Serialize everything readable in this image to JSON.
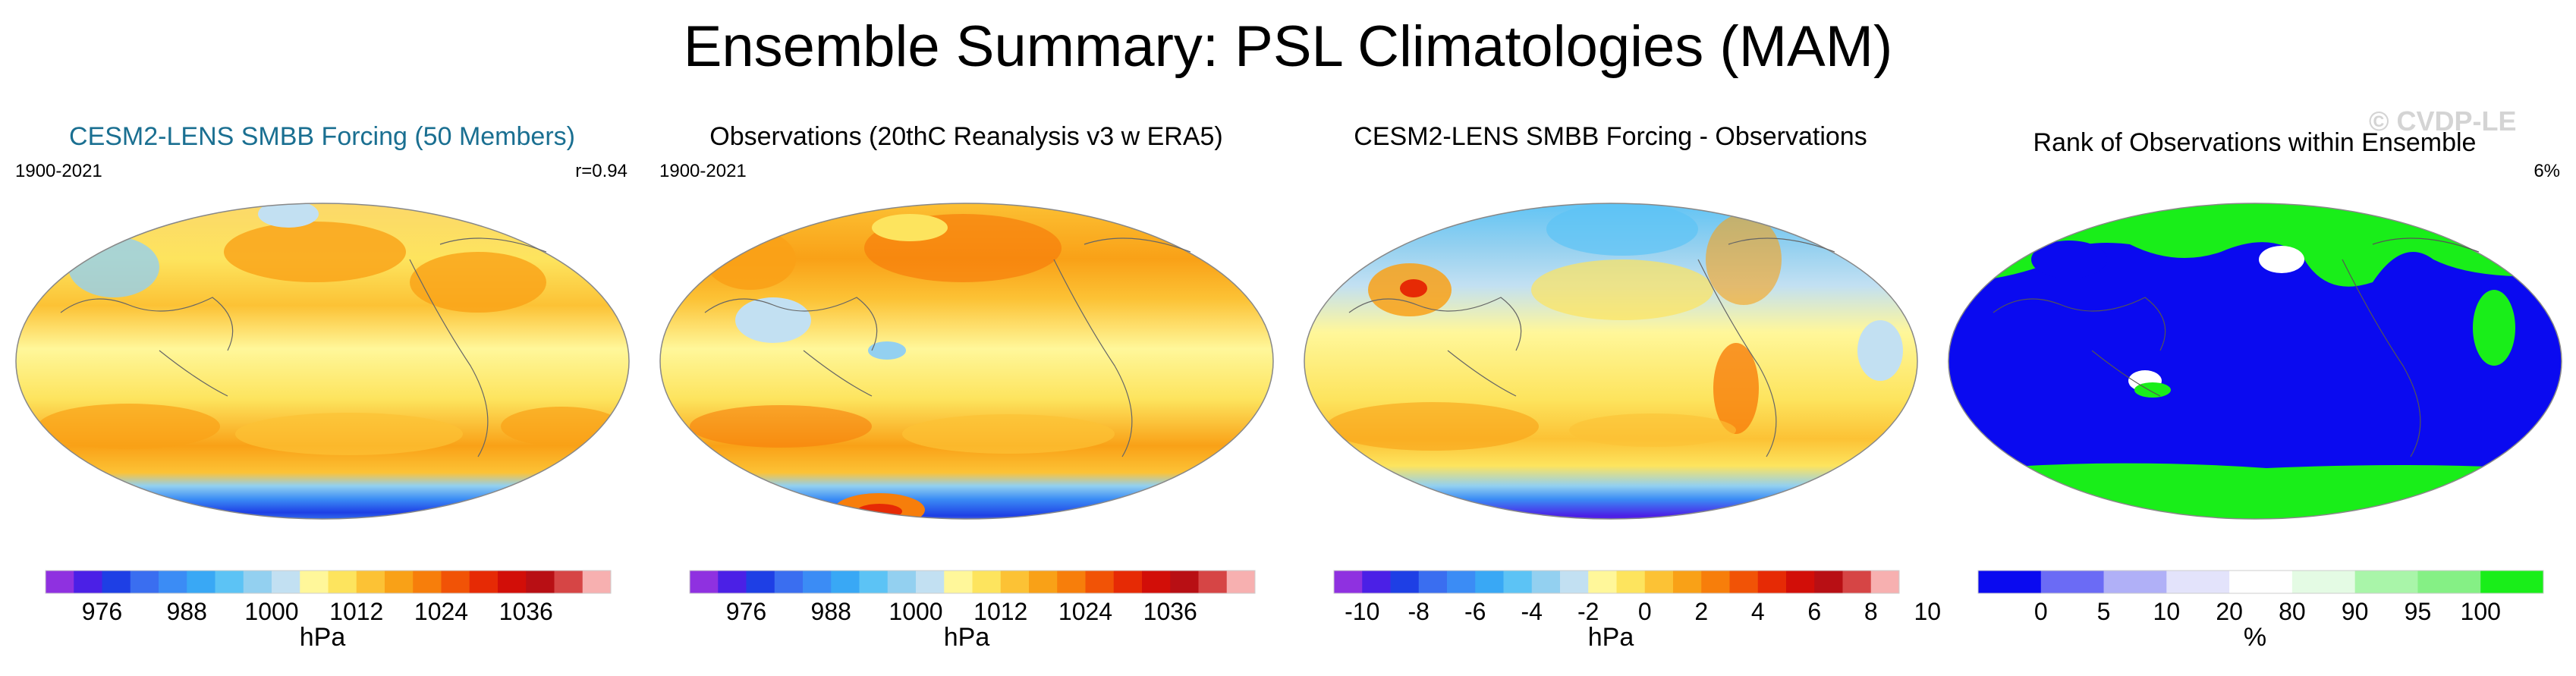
{
  "figure_title": "Ensemble Summary: PSL Climatologies (MAM)",
  "watermark": "© CVDP-LE",
  "chart_data": [
    {
      "type": "heatmap",
      "projection": "Robinson (Pacific-centred global map)",
      "title": "CESM2-LENS SMBB Forcing (50 Members)",
      "period": "1900-2021",
      "stat": "r=0.94",
      "colorbar": {
        "units": "hPa",
        "tick_labels": [
          "976",
          "988",
          "1000",
          "1012",
          "1024",
          "1036"
        ],
        "colors": [
          "#8f31e0",
          "#4b20e6",
          "#1e3fe5",
          "#3a6ef0",
          "#3b8cf5",
          "#39a8f5",
          "#5cc3f5",
          "#93d0f0",
          "#c2e0f2",
          "#fff79a",
          "#fde45e",
          "#fcc235",
          "#f9a117",
          "#f77e0b",
          "#f15306",
          "#e62a05",
          "#d20e08",
          "#b80f14",
          "#d64545",
          "#f7b0b0"
        ]
      }
    },
    {
      "type": "heatmap",
      "projection": "Robinson (Pacific-centred global map)",
      "title": "Observations (20thC Reanalysis v3 w ERA5)",
      "period": "1900-2021",
      "colorbar": {
        "units": "hPa",
        "tick_labels": [
          "976",
          "988",
          "1000",
          "1012",
          "1024",
          "1036"
        ],
        "colors": [
          "#8f31e0",
          "#4b20e6",
          "#1e3fe5",
          "#3a6ef0",
          "#3b8cf5",
          "#39a8f5",
          "#5cc3f5",
          "#93d0f0",
          "#c2e0f2",
          "#fff79a",
          "#fde45e",
          "#fcc235",
          "#f9a117",
          "#f77e0b",
          "#f15306",
          "#e62a05",
          "#d20e08",
          "#b80f14",
          "#d64545",
          "#f7b0b0"
        ]
      }
    },
    {
      "type": "heatmap",
      "projection": "Robinson (Pacific-centred global map)",
      "title": "CESM2-LENS SMBB Forcing - Observations",
      "colorbar": {
        "units": "hPa",
        "tick_labels": [
          "-10",
          "-8",
          "-6",
          "-4",
          "-2",
          "0",
          "2",
          "4",
          "6",
          "8",
          "10"
        ],
        "colors": [
          "#8f31e0",
          "#4b20e6",
          "#1e3fe5",
          "#3a6ef0",
          "#3b8cf5",
          "#39a8f5",
          "#5cc3f5",
          "#93d0f0",
          "#c2e0f2",
          "#fff79a",
          "#fde45e",
          "#fcc235",
          "#f9a117",
          "#f77e0b",
          "#f15306",
          "#e62a05",
          "#d20e08",
          "#b80f14",
          "#d64545",
          "#f7b0b0"
        ]
      }
    },
    {
      "type": "heatmap",
      "projection": "Robinson (Pacific-centred global map)",
      "title": "Rank of Observations within Ensemble",
      "stat": "6%",
      "colorbar": {
        "units": "%",
        "tick_labels": [
          "0",
          "5",
          "10",
          "20",
          "80",
          "90",
          "95",
          "100"
        ],
        "bounds": [
          0,
          5,
          10,
          20,
          80,
          90,
          95,
          100
        ],
        "colors": [
          "#0a0af0",
          "#6b6bf5",
          "#b0b0f7",
          "#e3e3fb",
          "#ffffff",
          "#e4fbe4",
          "#a9f5a9",
          "#85f085",
          "#19ee19"
        ]
      }
    }
  ]
}
